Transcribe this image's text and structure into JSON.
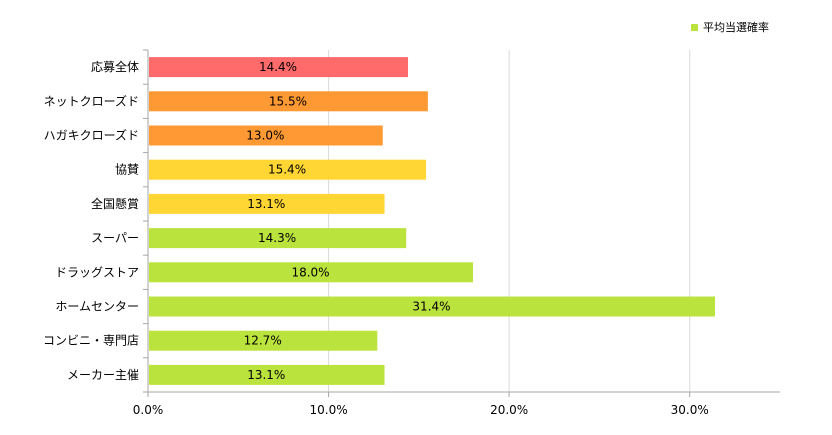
{
  "chart_data": {
    "type": "bar",
    "orientation": "horizontal",
    "categories": [
      "応募全体",
      "ネットクローズド",
      "ハガキクローズド",
      "協賛",
      "全国懸賞",
      "スーパー",
      "ドラッグストア",
      "ホームセンター",
      "コンビニ・専門店",
      "メーカー主催"
    ],
    "series": [
      {
        "name": "平均当選確率",
        "values": [
          14.4,
          15.5,
          13.0,
          15.4,
          13.1,
          14.3,
          18.0,
          31.4,
          12.7,
          13.1
        ],
        "data_labels": [
          "14.4%",
          "15.5%",
          "13.0%",
          "15.4%",
          "13.1%",
          "14.3%",
          "18.0%",
          "31.4%",
          "12.7%",
          "13.1%"
        ]
      }
    ],
    "bar_colors": [
      "#ff6b6b",
      "#ff9933",
      "#ff9933",
      "#ffd633",
      "#ffd633",
      "#bbe33d",
      "#bbe33d",
      "#bbe33d",
      "#bbe33d",
      "#bbe33d"
    ],
    "legend_color": "#bbe33d",
    "xlim": [
      0,
      35
    ],
    "xticks": [
      0,
      10,
      20,
      30
    ],
    "xtick_labels": [
      "0.0%",
      "10.0%",
      "20.0%",
      "30.0%"
    ],
    "grid": true,
    "legend_position": "top-right",
    "title": "",
    "xlabel": "",
    "ylabel": ""
  }
}
